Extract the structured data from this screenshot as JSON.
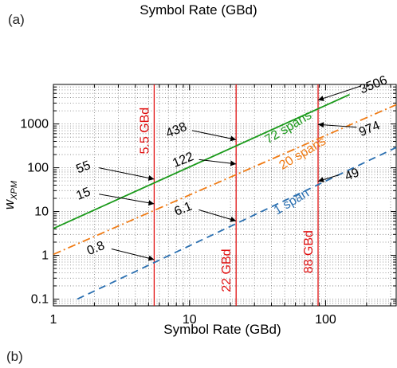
{
  "panel_labels": {
    "top": "(a)",
    "bottom": "(b)"
  },
  "top_figure": {
    "xlabel": "Symbol Rate (GBd)"
  },
  "colors": {
    "green": "#1a9a1a",
    "orange": "#f07b14",
    "blue": "#2a6fb0",
    "red": "#e01010",
    "grid": "#7a7a7a"
  },
  "chart_data": {
    "type": "line",
    "xlabel": "Symbol Rate (GBd)",
    "ylabel": "w",
    "ylabel_subscript": "XPM",
    "x_scale": "log",
    "y_scale": "log",
    "xlim": [
      1,
      330
    ],
    "ylim": [
      0.07,
      8000
    ],
    "x_ticks": [
      {
        "value": 1,
        "label": "1"
      },
      {
        "value": 10,
        "label": "10"
      },
      {
        "value": 100,
        "label": "100"
      }
    ],
    "y_ticks": [
      {
        "value": 0.1,
        "label": "0.1"
      },
      {
        "value": 1,
        "label": "1"
      },
      {
        "value": 10,
        "label": "10"
      },
      {
        "value": 100,
        "label": "100"
      },
      {
        "value": 1000,
        "label": "1000"
      }
    ],
    "grid": true,
    "series": [
      {
        "name": "72 spans",
        "color": "#1a9a1a",
        "dash": "",
        "x": [
          1,
          150
        ],
        "y": [
          4.1,
          4700
        ],
        "label_x": 55,
        "label_y": 700,
        "label_rotate": -31
      },
      {
        "name": "20 spans",
        "color": "#f07b14",
        "dash": "10 4 2 4",
        "x": [
          1,
          330
        ],
        "y": [
          1.05,
          2750
        ],
        "label_x": 70,
        "label_y": 180,
        "label_rotate": -31
      },
      {
        "name": "1 span",
        "color": "#2a6fb0",
        "dash": "9 6",
        "x": [
          1.5,
          330
        ],
        "y": [
          0.1,
          290
        ],
        "label_x": 58,
        "label_y": 14,
        "label_rotate": -31
      }
    ],
    "vertical_lines": [
      {
        "x": 5.5,
        "label": "5.5 GBd",
        "color": "#e01010",
        "label_y": 700
      },
      {
        "x": 22,
        "label": "22 GBd",
        "color": "#e01010",
        "label_y": 0.45
      },
      {
        "x": 88,
        "label": "88 GBd",
        "color": "#e01010",
        "label_y": 1.2
      }
    ],
    "annotations": [
      {
        "text": "3506",
        "x": 88,
        "y": 3506,
        "text_x": 230,
        "text_y": 6500
      },
      {
        "text": "974",
        "x": 88,
        "y": 974,
        "text_x": 215,
        "text_y": 640
      },
      {
        "text": "49",
        "x": 88,
        "y": 49,
        "text_x": 160,
        "text_y": 58
      },
      {
        "text": "438",
        "x": 22,
        "y": 438,
        "text_x": 8.2,
        "text_y": 600
      },
      {
        "text": "122",
        "x": 22,
        "y": 122,
        "text_x": 9.2,
        "text_y": 125
      },
      {
        "text": "6.1",
        "x": 22,
        "y": 6.1,
        "text_x": 9.2,
        "text_y": 9.5
      },
      {
        "text": "55",
        "x": 5.5,
        "y": 55,
        "text_x": 1.7,
        "text_y": 85
      },
      {
        "text": "15",
        "x": 5.5,
        "y": 15,
        "text_x": 1.7,
        "text_y": 21
      },
      {
        "text": "0.8",
        "x": 5.5,
        "y": 0.8,
        "text_x": 2.1,
        "text_y": 1.2
      }
    ]
  }
}
